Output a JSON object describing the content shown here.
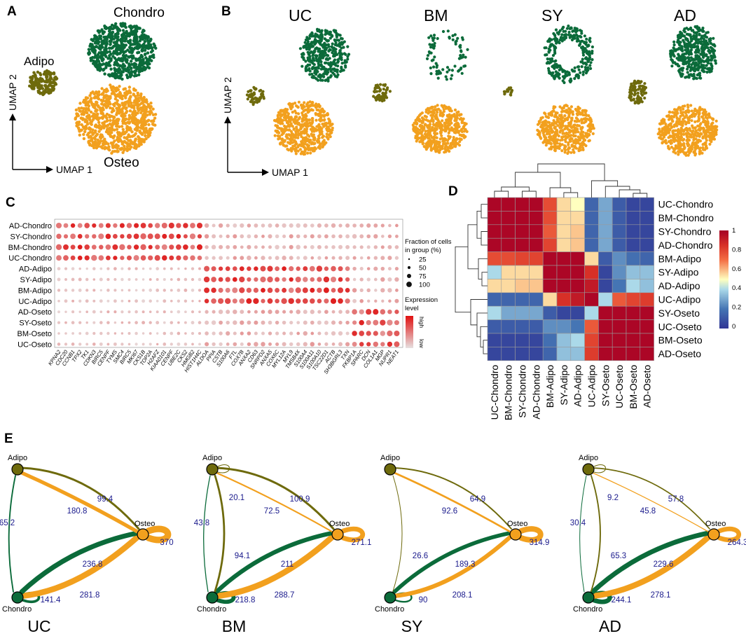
{
  "colors": {
    "chondro": "#0b6b3a",
    "osteo": "#f2a01e",
    "adipo": "#6e6a0c",
    "label_blue": "#1a1a8c"
  },
  "panelA": {
    "letter": "A",
    "labels": {
      "chondro": "Chondro",
      "adipo": "Adipo",
      "osteo": "Osteo"
    },
    "axis_x": "UMAP 1",
    "axis_y": "UMAP 2"
  },
  "panelB": {
    "letter": "B",
    "samples": [
      "UC",
      "BM",
      "SY",
      "AD"
    ],
    "axis_x": "UMAP 1",
    "axis_y": "UMAP 2"
  },
  "panelC": {
    "letter": "C",
    "groups": [
      "AD-Chondro",
      "SY-Chondro",
      "BM-Chondro",
      "UC-Chondro",
      "AD-Adipo",
      "SY-Adipo",
      "BM-Adipo",
      "UC-Adipo",
      "AD-Oseto",
      "SY-Oseto",
      "BM-Oseto",
      "UC-Oseto"
    ],
    "genes": [
      "KPNA2",
      "CDC20",
      "CCNB1",
      "TPX2",
      "TK1",
      "CDKN3",
      "BIRC5",
      "CENPF",
      "TYMS",
      "SMC4",
      "BIRC5",
      "MKI67",
      "CKS1B",
      "TOP2A",
      "H2AFZ",
      "KIAA0101",
      "CENPF",
      "UBE2C",
      "CKS2",
      "HMGB2",
      "HIST1H4C",
      "ALDOA",
      "PPIA",
      "CSTB",
      "S100A6",
      "FTL",
      "COX7B",
      "ANXA2",
      "CD63",
      "SNRPD2",
      "ANXA5",
      "COX6C",
      "MYL12A",
      "MYL9",
      "TMSB4X",
      "S100A4",
      "S100A11",
      "S100A10",
      "TSC22D1",
      "ACTB",
      "SH3BGRL3",
      "TXN",
      "FKBP1A",
      "SPARC",
      "DCN",
      "COL1A1",
      "MGP",
      "NUPR1",
      "NEAT1"
    ],
    "legend": {
      "fraction_title": "Fraction of cells\nin group (%)",
      "fractions": [
        "25",
        "50",
        "75",
        "100"
      ],
      "expression_title": "Expression\nlevel",
      "high": "high",
      "low": "low"
    }
  },
  "panelD": {
    "letter": "D",
    "row_labels": [
      "UC-Chondro",
      "BM-Chondro",
      "SY-Chondro",
      "AD-Chondro",
      "BM-Adipo",
      "SY-Adipo",
      "AD-Adipo",
      "UC-Adipo",
      "SY-Oseto",
      "UC-Oseto",
      "BM-Oseto",
      "AD-Oseto"
    ],
    "col_labels": [
      "UC-Chondro",
      "BM-Chondro",
      "SY-Chondro",
      "AD-Chondro",
      "BM-Adipo",
      "SY-Adipo",
      "AD-Adipo",
      "UC-Adipo",
      "SY-Oseto",
      "UC-Oseto",
      "BM-Oseto",
      "AD-Oseto"
    ],
    "matrix": [
      [
        0.98,
        0.98,
        0.98,
        0.98,
        0.78,
        0.55,
        0.5,
        0.15,
        0.3,
        0.12,
        0.05,
        0.05
      ],
      [
        0.98,
        0.98,
        0.98,
        0.98,
        0.78,
        0.55,
        0.55,
        0.15,
        0.3,
        0.12,
        0.05,
        0.05
      ],
      [
        0.98,
        0.98,
        0.98,
        0.98,
        0.75,
        0.55,
        0.58,
        0.15,
        0.3,
        0.12,
        0.05,
        0.05
      ],
      [
        0.98,
        0.98,
        0.98,
        0.98,
        0.8,
        0.55,
        0.58,
        0.15,
        0.3,
        0.12,
        0.05,
        0.05
      ],
      [
        0.78,
        0.78,
        0.8,
        0.8,
        0.98,
        0.98,
        0.98,
        0.55,
        0.12,
        0.25,
        0.18,
        0.15
      ],
      [
        0.4,
        0.55,
        0.55,
        0.55,
        0.98,
        0.98,
        0.98,
        0.85,
        0.05,
        0.25,
        0.35,
        0.35
      ],
      [
        0.55,
        0.55,
        0.58,
        0.58,
        0.98,
        0.98,
        0.98,
        0.92,
        0.05,
        0.2,
        0.4,
        0.35
      ],
      [
        0.15,
        0.15,
        0.15,
        0.15,
        0.55,
        0.85,
        0.92,
        0.98,
        0.4,
        0.75,
        0.8,
        0.82
      ],
      [
        0.4,
        0.3,
        0.3,
        0.3,
        0.12,
        0.05,
        0.05,
        0.4,
        0.98,
        0.98,
        0.98,
        0.98
      ],
      [
        0.12,
        0.12,
        0.12,
        0.12,
        0.25,
        0.25,
        0.2,
        0.75,
        0.98,
        0.98,
        0.98,
        0.98
      ],
      [
        0.05,
        0.05,
        0.05,
        0.05,
        0.18,
        0.35,
        0.4,
        0.8,
        0.98,
        0.98,
        0.98,
        0.98
      ],
      [
        0.05,
        0.05,
        0.05,
        0.05,
        0.15,
        0.35,
        0.35,
        0.82,
        0.98,
        0.98,
        0.98,
        0.98
      ]
    ],
    "colorbar_ticks": [
      "1",
      "0.8",
      "0.6",
      "0.4",
      "0.2",
      "0"
    ]
  },
  "panelE": {
    "letter": "E",
    "node_labels": {
      "adipo": "Adipo",
      "osteo": "Osteo",
      "chondro": "Chondro"
    },
    "networks": [
      {
        "name": "UC",
        "a_o": "99.4",
        "o_a": "180.8",
        "c_a": "65.2",
        "a_c": "",
        "a_self": "",
        "o_c": "236.8",
        "c_o": "281.8",
        "c_self": "141.4",
        "o_self": "370"
      },
      {
        "name": "BM",
        "a_o": "100.9",
        "o_a": "72.5",
        "c_a": "43.8",
        "a_c": "94.1",
        "a_self": "20.1",
        "o_c": "211",
        "c_o": "288.7",
        "c_self": "218.8",
        "o_self": "271.1"
      },
      {
        "name": "SY",
        "a_o": "64.9",
        "o_a": "92.6",
        "c_a": "",
        "a_c": "26.6",
        "a_self": "",
        "o_c": "189.3",
        "c_o": "208.1",
        "c_self": "90",
        "o_self": "314.9"
      },
      {
        "name": "AD",
        "a_o": "57.8",
        "o_a": "45.8",
        "c_a": "30.4",
        "a_c": "65.3",
        "a_self": "9.2",
        "o_c": "229.6",
        "c_o": "278.1",
        "c_self": "244.1",
        "o_self": "264.3"
      }
    ]
  }
}
